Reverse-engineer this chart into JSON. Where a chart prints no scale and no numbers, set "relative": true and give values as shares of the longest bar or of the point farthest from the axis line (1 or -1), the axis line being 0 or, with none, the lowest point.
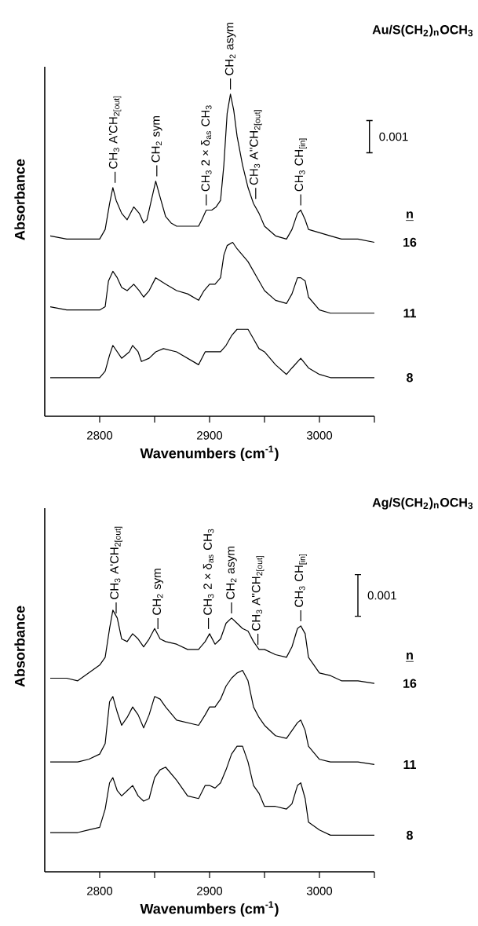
{
  "chart_data": [
    {
      "type": "line",
      "title": "Au/S(CH$_{2}$)$_{n}$OCH$_{3}$",
      "xlabel": "Wavenumbers (cm$^{-1}$)",
      "ylabel": "Absorbance",
      "legend_title": "n",
      "relative": true,
      "tick_labels": "x",
      "xlim": [
        2750,
        3050
      ],
      "xticks": [
        2800,
        {
          "value": 2850,
          "label": null
        },
        2900,
        {
          "value": 2950,
          "label": null
        },
        3000,
        {
          "value": 3050,
          "label": null
        }
      ],
      "annotations": [
        "0.001",
        {
          "text": "CH$_{3}$  A'CH$_{2[out]}$",
          "x": 2814,
          "y": 0.71
        },
        {
          "text": "CH$_{2}$ sym",
          "x": 2852,
          "y": 0.73
        },
        {
          "text": "CH$_{3}$  2 × δ$_{as}$ CH$_{3}$",
          "x": 2897,
          "y": 0.64
        },
        {
          "text": "CH$_{2}$  asym",
          "x": 2919,
          "y": 1.0
        },
        {
          "text": "CH$_{3}$  A''CH$_{2[out]}$",
          "x": 2942,
          "y": 0.66
        },
        {
          "text": "CH$_{3}$ CH$_{[in]}$",
          "x": 2983,
          "y": 0.64
        }
      ],
      "series": [
        {
          "name": "16",
          "color": "#000000",
          "x": [
            2755,
            2770,
            2780,
            2790,
            2800,
            2805,
            2809,
            2812,
            2815,
            2820,
            2825,
            2831,
            2836,
            2840,
            2843,
            2847,
            2851,
            2855,
            2860,
            2865,
            2870,
            2880,
            2890,
            2893,
            2897,
            2902,
            2906,
            2910,
            2913,
            2916,
            2919,
            2922,
            2925,
            2930,
            2935,
            2940,
            2945,
            2950,
            2960,
            2970,
            2975,
            2980,
            2983,
            2987,
            2990,
            3000,
            3010,
            3020,
            3035,
            3050
          ],
          "values": [
            0.56,
            0.55,
            0.55,
            0.55,
            0.55,
            0.58,
            0.66,
            0.71,
            0.67,
            0.63,
            0.61,
            0.65,
            0.63,
            0.6,
            0.61,
            0.67,
            0.73,
            0.68,
            0.62,
            0.6,
            0.59,
            0.59,
            0.59,
            0.61,
            0.64,
            0.64,
            0.65,
            0.67,
            0.78,
            0.94,
            1.0,
            0.95,
            0.87,
            0.78,
            0.71,
            0.66,
            0.63,
            0.59,
            0.56,
            0.55,
            0.58,
            0.63,
            0.64,
            0.61,
            0.58,
            0.57,
            0.56,
            0.55,
            0.55,
            0.54
          ]
        },
        {
          "name": "11",
          "color": "#000000",
          "x": [
            2755,
            2770,
            2780,
            2790,
            2800,
            2805,
            2808,
            2812,
            2816,
            2820,
            2825,
            2831,
            2836,
            2840,
            2845,
            2851,
            2860,
            2870,
            2880,
            2890,
            2895,
            2900,
            2905,
            2910,
            2913,
            2916,
            2921,
            2925,
            2930,
            2935,
            2940,
            2945,
            2950,
            2960,
            2970,
            2975,
            2980,
            2983,
            2987,
            2990,
            3000,
            3010,
            3020,
            3035,
            3050
          ],
          "values": [
            0.34,
            0.33,
            0.33,
            0.33,
            0.33,
            0.34,
            0.42,
            0.45,
            0.43,
            0.4,
            0.39,
            0.41,
            0.39,
            0.37,
            0.39,
            0.43,
            0.41,
            0.39,
            0.38,
            0.36,
            0.39,
            0.41,
            0.41,
            0.43,
            0.5,
            0.53,
            0.54,
            0.52,
            0.5,
            0.48,
            0.45,
            0.42,
            0.39,
            0.36,
            0.35,
            0.38,
            0.43,
            0.43,
            0.42,
            0.37,
            0.33,
            0.32,
            0.32,
            0.32,
            0.32
          ]
        },
        {
          "name": "8",
          "color": "#000000",
          "x": [
            2755,
            2770,
            2780,
            2790,
            2800,
            2805,
            2809,
            2812,
            2820,
            2827,
            2830,
            2835,
            2838,
            2845,
            2851,
            2858,
            2870,
            2880,
            2890,
            2896,
            2902,
            2910,
            2915,
            2920,
            2925,
            2930,
            2935,
            2940,
            2945,
            2950,
            2960,
            2970,
            2975,
            2983,
            2990,
            3000,
            3010,
            3020,
            3035,
            3050
          ],
          "values": [
            0.12,
            0.12,
            0.12,
            0.12,
            0.12,
            0.14,
            0.19,
            0.22,
            0.18,
            0.2,
            0.22,
            0.2,
            0.17,
            0.18,
            0.2,
            0.21,
            0.2,
            0.18,
            0.16,
            0.2,
            0.2,
            0.2,
            0.22,
            0.25,
            0.27,
            0.27,
            0.27,
            0.24,
            0.21,
            0.2,
            0.16,
            0.13,
            0.15,
            0.18,
            0.15,
            0.13,
            0.12,
            0.12,
            0.12,
            0.12
          ]
        }
      ]
    },
    {
      "type": "line",
      "title": "Ag/S(CH$_{2}$)$_{n}$OCH$_{3}$",
      "xlabel": "Wavenumbers (cm$^{-1}$)",
      "ylabel": "Absorbance",
      "legend_title": "n",
      "relative": true,
      "tick_labels": "x",
      "xlim": [
        2750,
        3050
      ],
      "xticks": [
        2800,
        {
          "value": 2850,
          "label": null
        },
        2900,
        {
          "value": 2950,
          "label": null
        },
        3000,
        {
          "value": 3050,
          "label": null
        }
      ],
      "annotations": [
        "0.001",
        {
          "text": "CH$_{3}$  A'CH$_{2[out]}$",
          "x": 2815,
          "y": 0.97
        },
        {
          "text": "CH$_{2}$ sym",
          "x": 2853,
          "y": 0.91
        },
        {
          "text": "CH$_{3}$  2 × δ$_{as}$ CH$_{3}$",
          "x": 2899,
          "y": 0.91
        },
        {
          "text": "CH$_{2}$  asym",
          "x": 2920,
          "y": 0.97
        },
        {
          "text": "CH$_{3}$  A''CH$_{2[out]}$",
          "x": 2944,
          "y": 0.85
        },
        {
          "text": "CH$_{3}$  CH$_{[in]}$",
          "x": 2983,
          "y": 0.94
        }
      ],
      "series": [
        {
          "name": "16",
          "color": "#000000",
          "x": [
            2755,
            2770,
            2780,
            2790,
            2800,
            2805,
            2809,
            2812,
            2816,
            2820,
            2825,
            2830,
            2835,
            2840,
            2845,
            2850,
            2855,
            2860,
            2870,
            2880,
            2890,
            2896,
            2900,
            2905,
            2910,
            2915,
            2920,
            2925,
            2930,
            2935,
            2940,
            2945,
            2950,
            2960,
            2970,
            2975,
            2980,
            2983,
            2987,
            2990,
            3000,
            3010,
            3020,
            3035,
            3050
          ],
          "values": [
            0.74,
            0.74,
            0.73,
            0.76,
            0.79,
            0.82,
            0.93,
            1.0,
            0.97,
            0.89,
            0.88,
            0.91,
            0.89,
            0.86,
            0.89,
            0.93,
            0.89,
            0.88,
            0.87,
            0.85,
            0.85,
            0.88,
            0.91,
            0.87,
            0.89,
            0.95,
            0.97,
            0.95,
            0.93,
            0.92,
            0.88,
            0.85,
            0.85,
            0.83,
            0.82,
            0.86,
            0.93,
            0.94,
            0.91,
            0.82,
            0.76,
            0.75,
            0.73,
            0.73,
            0.72
          ]
        },
        {
          "name": "11",
          "color": "#000000",
          "x": [
            2755,
            2770,
            2780,
            2790,
            2800,
            2805,
            2809,
            2812,
            2816,
            2820,
            2825,
            2830,
            2835,
            2840,
            2845,
            2850,
            2855,
            2860,
            2870,
            2880,
            2890,
            2896,
            2900,
            2905,
            2910,
            2915,
            2920,
            2925,
            2930,
            2935,
            2940,
            2945,
            2950,
            2960,
            2970,
            2975,
            2980,
            2983,
            2987,
            2990,
            3000,
            3010,
            3020,
            3035,
            3050
          ],
          "values": [
            0.42,
            0.42,
            0.42,
            0.43,
            0.45,
            0.49,
            0.65,
            0.67,
            0.61,
            0.56,
            0.59,
            0.63,
            0.6,
            0.55,
            0.6,
            0.67,
            0.66,
            0.63,
            0.58,
            0.57,
            0.56,
            0.6,
            0.63,
            0.63,
            0.66,
            0.71,
            0.74,
            0.76,
            0.77,
            0.73,
            0.63,
            0.59,
            0.56,
            0.52,
            0.51,
            0.54,
            0.57,
            0.58,
            0.54,
            0.48,
            0.43,
            0.42,
            0.42,
            0.42,
            0.41
          ]
        },
        {
          "name": "8",
          "color": "#000000",
          "x": [
            2755,
            2770,
            2780,
            2790,
            2800,
            2805,
            2809,
            2812,
            2816,
            2820,
            2825,
            2830,
            2835,
            2840,
            2845,
            2850,
            2855,
            2860,
            2870,
            2880,
            2890,
            2896,
            2900,
            2905,
            2910,
            2915,
            2920,
            2925,
            2930,
            2935,
            2940,
            2945,
            2950,
            2960,
            2970,
            2975,
            2980,
            2983,
            2987,
            2990,
            3000,
            3010,
            3020,
            3035,
            3050
          ],
          "values": [
            0.15,
            0.15,
            0.15,
            0.16,
            0.17,
            0.24,
            0.34,
            0.36,
            0.31,
            0.29,
            0.31,
            0.33,
            0.29,
            0.27,
            0.28,
            0.36,
            0.39,
            0.4,
            0.35,
            0.29,
            0.28,
            0.33,
            0.33,
            0.32,
            0.34,
            0.39,
            0.45,
            0.48,
            0.48,
            0.42,
            0.33,
            0.3,
            0.25,
            0.25,
            0.24,
            0.26,
            0.33,
            0.34,
            0.28,
            0.19,
            0.16,
            0.14,
            0.14,
            0.14,
            0.14
          ]
        }
      ]
    }
  ]
}
